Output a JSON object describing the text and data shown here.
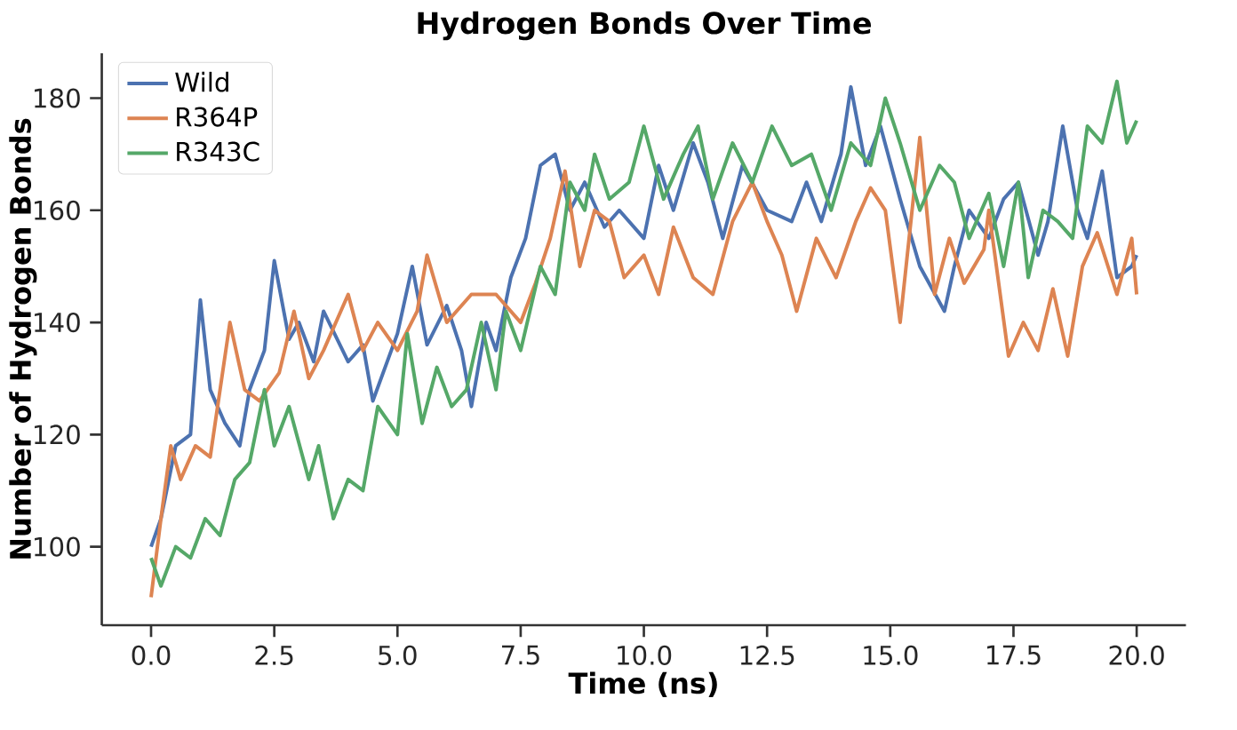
{
  "chart_data": {
    "type": "line",
    "title": "Hydrogen Bonds Over Time",
    "xlabel": "Time (ns)",
    "ylabel": "Number of Hydrogen Bonds",
    "xlim": [
      -1,
      21
    ],
    "ylim": [
      86,
      188
    ],
    "xticks": [
      {
        "value": 0,
        "label": "0.0"
      },
      {
        "value": 2.5,
        "label": "2.5"
      },
      {
        "value": 5,
        "label": "5.0"
      },
      {
        "value": 7.5,
        "label": "7.5"
      },
      {
        "value": 10,
        "label": "10.0"
      },
      {
        "value": 12.5,
        "label": "12.5"
      },
      {
        "value": 15,
        "label": "15.0"
      },
      {
        "value": 17.5,
        "label": "17.5"
      },
      {
        "value": 20,
        "label": "20.0"
      }
    ],
    "yticks": [
      100,
      120,
      140,
      160,
      180
    ],
    "legend": "top left",
    "grid": false,
    "marker": "none",
    "line_style": "solid",
    "series": [
      {
        "name": "Wild",
        "color": "#4c72b0",
        "x": [
          0,
          0.2,
          0.5,
          0.8,
          1.0,
          1.2,
          1.5,
          1.8,
          2.0,
          2.3,
          2.5,
          2.8,
          3.0,
          3.3,
          3.5,
          4.0,
          4.3,
          4.5,
          5.0,
          5.3,
          5.6,
          6.0,
          6.3,
          6.5,
          6.8,
          7.0,
          7.3,
          7.6,
          7.9,
          8.2,
          8.5,
          8.8,
          9.2,
          9.5,
          10.0,
          10.3,
          10.6,
          11.0,
          11.3,
          11.6,
          12.0,
          12.5,
          13.0,
          13.3,
          13.6,
          14.0,
          14.2,
          14.5,
          14.8,
          15.2,
          15.6,
          16.1,
          16.3,
          16.6,
          17.0,
          17.3,
          17.6,
          18.0,
          18.2,
          18.5,
          18.8,
          19.0,
          19.3,
          19.6,
          19.9,
          20.0
        ],
        "values": [
          100,
          105,
          118,
          120,
          144,
          128,
          122,
          118,
          128,
          135,
          151,
          137,
          140,
          133,
          142,
          133,
          136,
          126,
          138,
          150,
          136,
          143,
          135,
          125,
          140,
          135,
          148,
          155,
          168,
          170,
          160,
          165,
          157,
          160,
          155,
          168,
          160,
          172,
          165,
          155,
          168,
          160,
          158,
          165,
          158,
          170,
          182,
          168,
          175,
          162,
          150,
          142,
          150,
          160,
          155,
          162,
          165,
          152,
          158,
          175,
          160,
          155,
          167,
          148,
          150,
          152
        ]
      },
      {
        "name": "R364P",
        "color": "#dd8452",
        "x": [
          0,
          0.2,
          0.4,
          0.6,
          0.9,
          1.2,
          1.6,
          1.9,
          2.2,
          2.6,
          2.9,
          3.2,
          3.5,
          4.0,
          4.3,
          4.6,
          5.0,
          5.4,
          5.6,
          6.0,
          6.5,
          7.0,
          7.5,
          7.8,
          8.1,
          8.4,
          8.7,
          9.0,
          9.3,
          9.6,
          10.0,
          10.3,
          10.6,
          11.0,
          11.4,
          11.8,
          12.2,
          12.5,
          12.8,
          13.1,
          13.5,
          13.9,
          14.3,
          14.6,
          14.9,
          15.2,
          15.6,
          15.9,
          16.2,
          16.5,
          16.9,
          17.0,
          17.4,
          17.7,
          18.0,
          18.3,
          18.6,
          18.9,
          19.2,
          19.6,
          19.9,
          20.0
        ],
        "values": [
          91,
          105,
          118,
          112,
          118,
          116,
          140,
          128,
          126,
          131,
          142,
          130,
          135,
          145,
          135,
          140,
          135,
          142,
          152,
          140,
          145,
          145,
          140,
          147,
          155,
          167,
          150,
          160,
          158,
          148,
          152,
          145,
          157,
          148,
          145,
          158,
          165,
          158,
          152,
          142,
          155,
          148,
          158,
          164,
          160,
          140,
          173,
          145,
          155,
          147,
          153,
          160,
          134,
          140,
          135,
          146,
          134,
          150,
          156,
          145,
          155,
          145
        ]
      },
      {
        "name": "R343C",
        "color": "#55a868",
        "x": [
          0,
          0.2,
          0.5,
          0.8,
          1.1,
          1.4,
          1.7,
          2.0,
          2.3,
          2.5,
          2.8,
          3.2,
          3.4,
          3.7,
          4.0,
          4.3,
          4.6,
          5.0,
          5.2,
          5.5,
          5.8,
          6.1,
          6.4,
          6.7,
          7.0,
          7.2,
          7.5,
          7.9,
          8.2,
          8.5,
          8.8,
          9.0,
          9.3,
          9.7,
          10.0,
          10.4,
          10.8,
          11.1,
          11.4,
          11.8,
          12.2,
          12.6,
          13.0,
          13.4,
          13.8,
          14.2,
          14.6,
          14.9,
          15.2,
          15.6,
          16.0,
          16.3,
          16.6,
          17.0,
          17.3,
          17.6,
          17.8,
          18.1,
          18.4,
          18.7,
          19.0,
          19.3,
          19.6,
          19.8,
          20.0
        ],
        "values": [
          98,
          93,
          100,
          98,
          105,
          102,
          112,
          115,
          128,
          118,
          125,
          112,
          118,
          105,
          112,
          110,
          125,
          120,
          138,
          122,
          132,
          125,
          128,
          140,
          128,
          142,
          135,
          150,
          145,
          165,
          160,
          170,
          162,
          165,
          175,
          162,
          170,
          175,
          162,
          172,
          165,
          175,
          168,
          170,
          160,
          172,
          168,
          180,
          172,
          160,
          168,
          165,
          155,
          163,
          150,
          165,
          148,
          160,
          158,
          155,
          175,
          172,
          183,
          172,
          176
        ]
      }
    ]
  }
}
